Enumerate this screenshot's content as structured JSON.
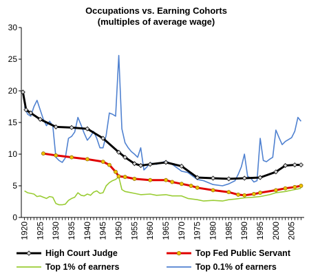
{
  "chart_data": {
    "type": "line",
    "title": "Occupations vs. Earning Cohorts",
    "subtitle": "(multiples of average wage)",
    "xlabel": "",
    "ylabel": "",
    "xlim": [
      1919,
      2009
    ],
    "ylim": [
      0,
      30
    ],
    "yticks": [
      0,
      5,
      10,
      15,
      20,
      25,
      30
    ],
    "xticks": [
      1920,
      1925,
      1930,
      1935,
      1940,
      1945,
      1950,
      1955,
      1960,
      1965,
      1970,
      1975,
      1980,
      1985,
      1990,
      1995,
      2000,
      2005
    ],
    "grid": false,
    "legend_position": "bottom",
    "series": [
      {
        "name": "High Court Judge",
        "color": "#000000",
        "marker": "diamond",
        "marker_fill": "#d9d9d9",
        "x": [
          1919.5,
          1920.5,
          1922,
          1925,
          1930,
          1935,
          1940,
          1945,
          1950,
          1952,
          1955,
          1957,
          1960,
          1965,
          1970,
          1975,
          1980,
          1985,
          1990,
          1995,
          2000,
          2003,
          2006,
          2008
        ],
        "y": [
          19.8,
          17.0,
          16.5,
          15.5,
          14.3,
          14.2,
          14.0,
          12.5,
          10.3,
          9.5,
          8.5,
          8.2,
          8.4,
          8.7,
          8.1,
          6.3,
          6.2,
          6.1,
          6.2,
          6.3,
          7.2,
          8.2,
          8.3,
          8.3
        ]
      },
      {
        "name": "Top Fed Public Servant",
        "color": "#e00000",
        "marker": "circle",
        "marker_fill": "#f0c000",
        "x": [
          1926,
          1930,
          1935,
          1940,
          1945,
          1947,
          1949,
          1950,
          1952,
          1955,
          1960,
          1965,
          1967,
          1970,
          1973,
          1975,
          1980,
          1985,
          1988,
          1990,
          1993,
          1995,
          2000,
          2003,
          2006,
          2008
        ],
        "y": [
          10.1,
          9.8,
          9.5,
          9.2,
          8.8,
          8.3,
          7.2,
          6.5,
          6.4,
          6.1,
          5.9,
          5.9,
          5.6,
          5.3,
          5.0,
          4.7,
          4.3,
          4.0,
          3.6,
          3.5,
          3.7,
          3.9,
          4.3,
          4.6,
          4.8,
          5.0
        ]
      },
      {
        "name": "Top 1% of earners",
        "color": "#99cc33",
        "marker": "none",
        "x": [
          1920,
          1921,
          1922,
          1923,
          1924,
          1925,
          1926,
          1927,
          1928,
          1929,
          1930,
          1931,
          1932,
          1933,
          1934,
          1935,
          1936,
          1937,
          1938,
          1939,
          1940,
          1941,
          1942,
          1943,
          1944,
          1945,
          1946,
          1947,
          1948,
          1949,
          1950,
          1951,
          1952,
          1953,
          1955,
          1957,
          1960,
          1962,
          1965,
          1967,
          1970,
          1972,
          1975,
          1977,
          1980,
          1983,
          1985,
          1987,
          1990,
          1993,
          1995,
          1998,
          2000,
          2003,
          2005,
          2008
        ],
        "y": [
          4.2,
          3.9,
          3.8,
          3.7,
          3.3,
          3.4,
          3.2,
          3.0,
          3.3,
          3.2,
          2.2,
          2.0,
          2.0,
          2.1,
          2.7,
          3.0,
          3.2,
          3.9,
          3.5,
          3.4,
          3.7,
          3.5,
          4.0,
          4.2,
          3.8,
          3.9,
          5.0,
          5.5,
          5.8,
          6.0,
          6.4,
          4.4,
          4.1,
          4.0,
          3.8,
          3.6,
          3.7,
          3.5,
          3.6,
          3.4,
          3.4,
          3.0,
          2.8,
          2.6,
          2.7,
          2.6,
          2.8,
          2.9,
          3.1,
          3.2,
          3.3,
          3.6,
          3.9,
          4.1,
          4.3,
          4.6
        ]
      },
      {
        "name": "Top 0.1% of earners",
        "color": "#4f81d0",
        "marker": "none",
        "x": [
          1920,
          1921,
          1922,
          1923,
          1924,
          1925,
          1926,
          1927,
          1928,
          1929,
          1930,
          1931,
          1932,
          1933,
          1934,
          1935,
          1936,
          1937,
          1938,
          1939,
          1940,
          1941,
          1942,
          1943,
          1944,
          1945,
          1946,
          1947,
          1948,
          1949,
          1950,
          1951,
          1952,
          1953,
          1954,
          1955,
          1956,
          1957,
          1958,
          1959,
          1960,
          1962,
          1965,
          1967,
          1970,
          1972,
          1975,
          1977,
          1980,
          1983,
          1985,
          1987,
          1988,
          1989,
          1990,
          1991,
          1992,
          1993,
          1994,
          1995,
          1996,
          1997,
          1998,
          1999,
          2000,
          2001,
          2002,
          2003,
          2004,
          2005,
          2006,
          2007,
          2008
        ],
        "y": [
          17.5,
          16.3,
          16.0,
          17.5,
          18.5,
          17.0,
          15.5,
          14.5,
          15.2,
          14.5,
          9.5,
          9.0,
          8.7,
          9.4,
          12.5,
          12.8,
          13.5,
          15.8,
          14.6,
          13.3,
          12.2,
          12.8,
          13.6,
          12.5,
          11.0,
          11.0,
          13.0,
          16.5,
          16.3,
          16.0,
          25.6,
          14.0,
          11.8,
          11.0,
          10.4,
          10.0,
          9.5,
          11.0,
          7.5,
          8.0,
          8.6,
          8.4,
          8.9,
          8.4,
          7.3,
          7.1,
          6.0,
          5.8,
          5.2,
          5.0,
          5.3,
          5.8,
          6.8,
          8.0,
          10.0,
          6.5,
          6.2,
          5.6,
          5.8,
          12.5,
          9.0,
          8.8,
          9.2,
          9.5,
          13.8,
          12.6,
          11.5,
          12.0,
          12.3,
          12.6,
          13.6,
          15.8,
          15.2
        ]
      }
    ]
  }
}
